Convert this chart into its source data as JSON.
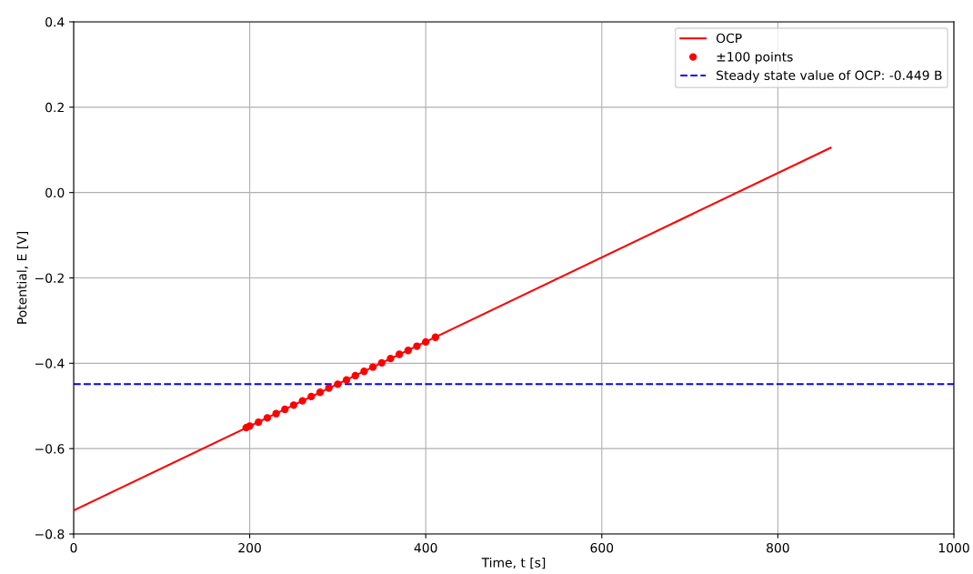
{
  "chart_data": {
    "type": "line",
    "xlabel": "Time, t [s]",
    "ylabel": "Potential, E [V]",
    "xlim": [
      0,
      1000
    ],
    "xticks": [
      0,
      200,
      400,
      600,
      800,
      1000
    ],
    "ylim": [
      -0.8,
      0.4
    ],
    "yticks": [
      {
        "value": -0.8,
        "label": "−0.8"
      },
      {
        "value": -0.6,
        "label": "−0.6"
      },
      {
        "value": -0.4,
        "label": "−0.4"
      },
      {
        "value": -0.2,
        "label": "−0.2"
      },
      {
        "value": 0.0,
        "label": "0.0"
      },
      {
        "value": 0.2,
        "label": "0.2"
      },
      {
        "value": 0.4,
        "label": "0.4"
      }
    ],
    "grid": true,
    "legend": "top right",
    "series": [
      {
        "name": "OCP",
        "color": "#ff0000",
        "x": [
          0,
          860
        ],
        "values": [
          -0.745,
          0.105
        ]
      },
      {
        "name": "±100 points",
        "type": "scatter",
        "marker": "circle",
        "color": "#ff0000",
        "x": [
          196,
          200,
          210,
          220,
          230,
          240,
          250,
          260,
          270,
          280,
          290,
          300,
          310,
          320,
          330,
          340,
          350,
          360,
          370,
          380,
          390,
          400,
          411
        ],
        "values": [
          -0.551,
          -0.547,
          -0.538,
          -0.528,
          -0.518,
          -0.508,
          -0.498,
          -0.488,
          -0.478,
          -0.468,
          -0.458,
          -0.449,
          -0.439,
          -0.429,
          -0.419,
          -0.409,
          -0.399,
          -0.389,
          -0.379,
          -0.37,
          -0.36,
          -0.35,
          -0.339
        ]
      }
    ],
    "ref_lines": [
      {
        "axis": "y",
        "value": -0.449,
        "label": "Steady state value of OCP: -0.449 B",
        "color": "#0000ff",
        "line_style": "dashed"
      }
    ]
  }
}
